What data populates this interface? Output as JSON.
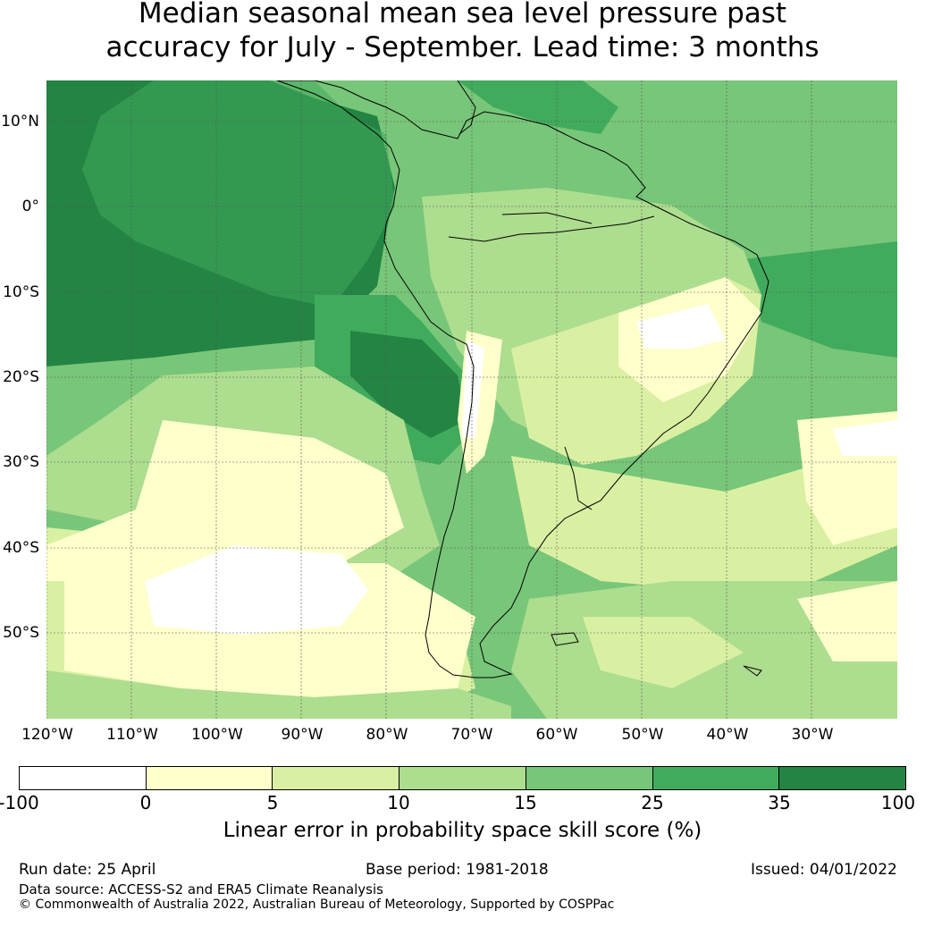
{
  "title": {
    "line1": "Median seasonal mean sea level pressure past",
    "line2": "accuracy for July - September. Lead time: 3 months"
  },
  "map": {
    "region": "South America and surrounding oceans",
    "lat_labels": [
      "10°N",
      "0°",
      "10°S",
      "20°S",
      "30°S",
      "40°S",
      "50°S"
    ],
    "lon_labels": [
      "120°W",
      "110°W",
      "100°W",
      "90°W",
      "80°W",
      "70°W",
      "60°W",
      "50°W",
      "40°W",
      "30°W"
    ],
    "gridlines": true
  },
  "colorbar": {
    "label": "Linear error in probability space skill score (%)",
    "ticks": [
      "-100",
      "0",
      "5",
      "10",
      "15",
      "25",
      "35",
      "100"
    ],
    "colors": [
      "#ffffff",
      "#ffffcc",
      "#d9f0a3",
      "#addd8e",
      "#78c679",
      "#41ab5d",
      "#238443"
    ]
  },
  "footer": {
    "run_date": "Run date: 25 April",
    "base_period": "Base period: 1981-2018",
    "issued": "Issued: 04/01/2022",
    "data_source": "Data source: ACCESS-S2 and ERA5 Climate Reanalysis",
    "copyright": "© Commonwealth of Australia 2022, Australian Bureau of Meteorology, Supported by COSPPac"
  }
}
